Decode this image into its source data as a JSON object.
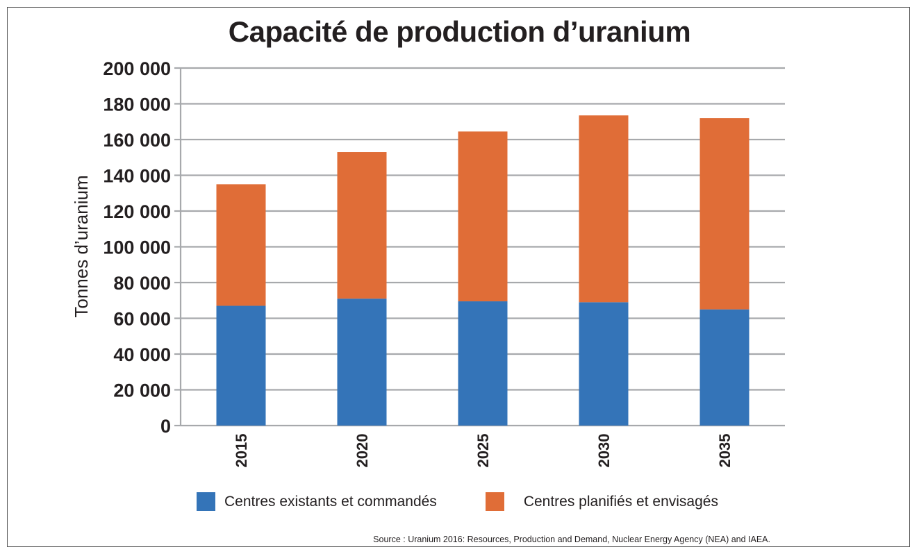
{
  "chart_data": {
    "type": "bar",
    "stacked": true,
    "title": "Capacité de production d’uranium",
    "ylabel": "Tonnes d’uranium",
    "xlabel": "",
    "categories": [
      "2015",
      "2020",
      "2025",
      "2030",
      "2035"
    ],
    "series": [
      {
        "name": "Centres existants et commandés",
        "color": "#3474b8",
        "values": [
          67000,
          71000,
          69500,
          69000,
          65000
        ]
      },
      {
        "name": "Centres planifiés et envisagés",
        "color": "#e06d37",
        "values": [
          68000,
          82000,
          95000,
          104500,
          107000
        ]
      }
    ],
    "ylim": [
      0,
      200000
    ],
    "yticks": [
      0,
      20000,
      40000,
      60000,
      80000,
      100000,
      120000,
      140000,
      160000,
      180000,
      200000
    ],
    "ytick_labels": [
      "0",
      "20 000",
      "40 000",
      "60 000",
      "80 000",
      "100 000",
      "120 000",
      "140 000",
      "160 000",
      "180 000",
      "200 000"
    ],
    "grid": true,
    "legend_position": "bottom"
  },
  "source": "Source : Uranium 2016: Resources, Production and Demand, Nuclear Energy Agency (NEA) and IAEA."
}
